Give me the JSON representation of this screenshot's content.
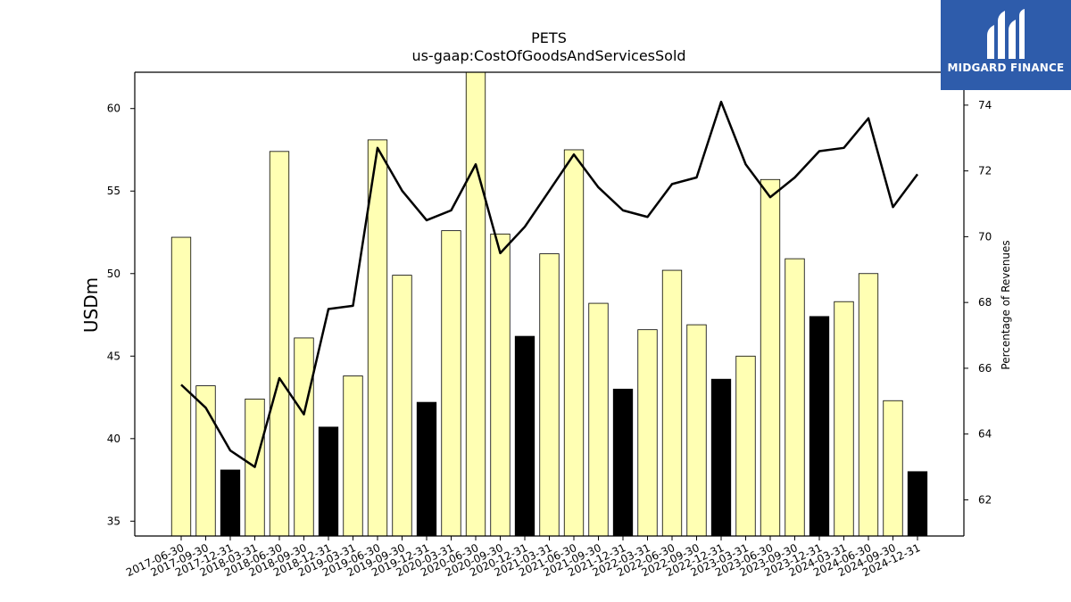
{
  "chart_data": {
    "type": "bar",
    "title": "PETS",
    "subtitle": "us-gaap:CostOfGoodsAndServicesSold",
    "ylabel": "USDm",
    "y2label": "Percentage of Revenues",
    "ylim": [
      34.1,
      62.2
    ],
    "y2lim": [
      60.9,
      75.0
    ],
    "yticks": [
      35,
      40,
      45,
      50,
      55,
      60
    ],
    "y2ticks": [
      62,
      64,
      66,
      68,
      70,
      72,
      74
    ],
    "categories": [
      "2017-06-30",
      "2017-09-30",
      "2017-12-31",
      "2018-03-31",
      "2018-06-30",
      "2018-09-30",
      "2018-12-31",
      "2019-03-31",
      "2019-06-30",
      "2019-09-30",
      "2019-12-31",
      "2020-03-31",
      "2020-06-30",
      "2020-09-30",
      "2020-12-31",
      "2021-03-31",
      "2021-06-30",
      "2021-09-30",
      "2021-12-31",
      "2022-03-31",
      "2022-06-30",
      "2022-09-30",
      "2022-12-31",
      "2023-03-31",
      "2023-06-30",
      "2023-09-30",
      "2023-12-31",
      "2024-03-31",
      "2024-06-30",
      "2024-09-30",
      "2024-12-31"
    ],
    "series": [
      {
        "kind": "bar",
        "values": [
          52.2,
          43.2,
          38.1,
          42.4,
          57.4,
          46.1,
          40.7,
          43.8,
          58.1,
          49.9,
          42.2,
          52.6,
          62.2,
          52.4,
          46.2,
          51.2,
          57.5,
          48.2,
          43.0,
          46.6,
          50.2,
          46.9,
          43.6,
          45.0,
          55.7,
          50.9,
          47.4,
          48.3,
          50.0,
          42.3,
          38.0
        ],
        "highlight": [
          false,
          false,
          true,
          false,
          false,
          false,
          true,
          false,
          false,
          false,
          true,
          false,
          false,
          false,
          true,
          false,
          false,
          false,
          true,
          false,
          false,
          false,
          true,
          false,
          false,
          false,
          true,
          false,
          false,
          false,
          true
        ]
      },
      {
        "kind": "line",
        "axis": "right",
        "values": [
          65.5,
          64.8,
          63.5,
          63.0,
          65.7,
          64.6,
          67.8,
          67.9,
          72.7,
          71.4,
          70.5,
          70.8,
          72.2,
          69.5,
          70.3,
          71.4,
          72.5,
          71.5,
          70.8,
          70.6,
          71.6,
          71.8,
          74.1,
          72.2,
          71.2,
          71.8,
          72.6,
          72.7,
          73.6,
          70.9,
          71.9
        ]
      }
    ],
    "colors": {
      "bar": "#ffffb3",
      "bar_highlight": "#000000",
      "line": "#000000"
    }
  },
  "logo": {
    "text": "MIDGARD FINANCE",
    "bg": "#2e5cab"
  }
}
